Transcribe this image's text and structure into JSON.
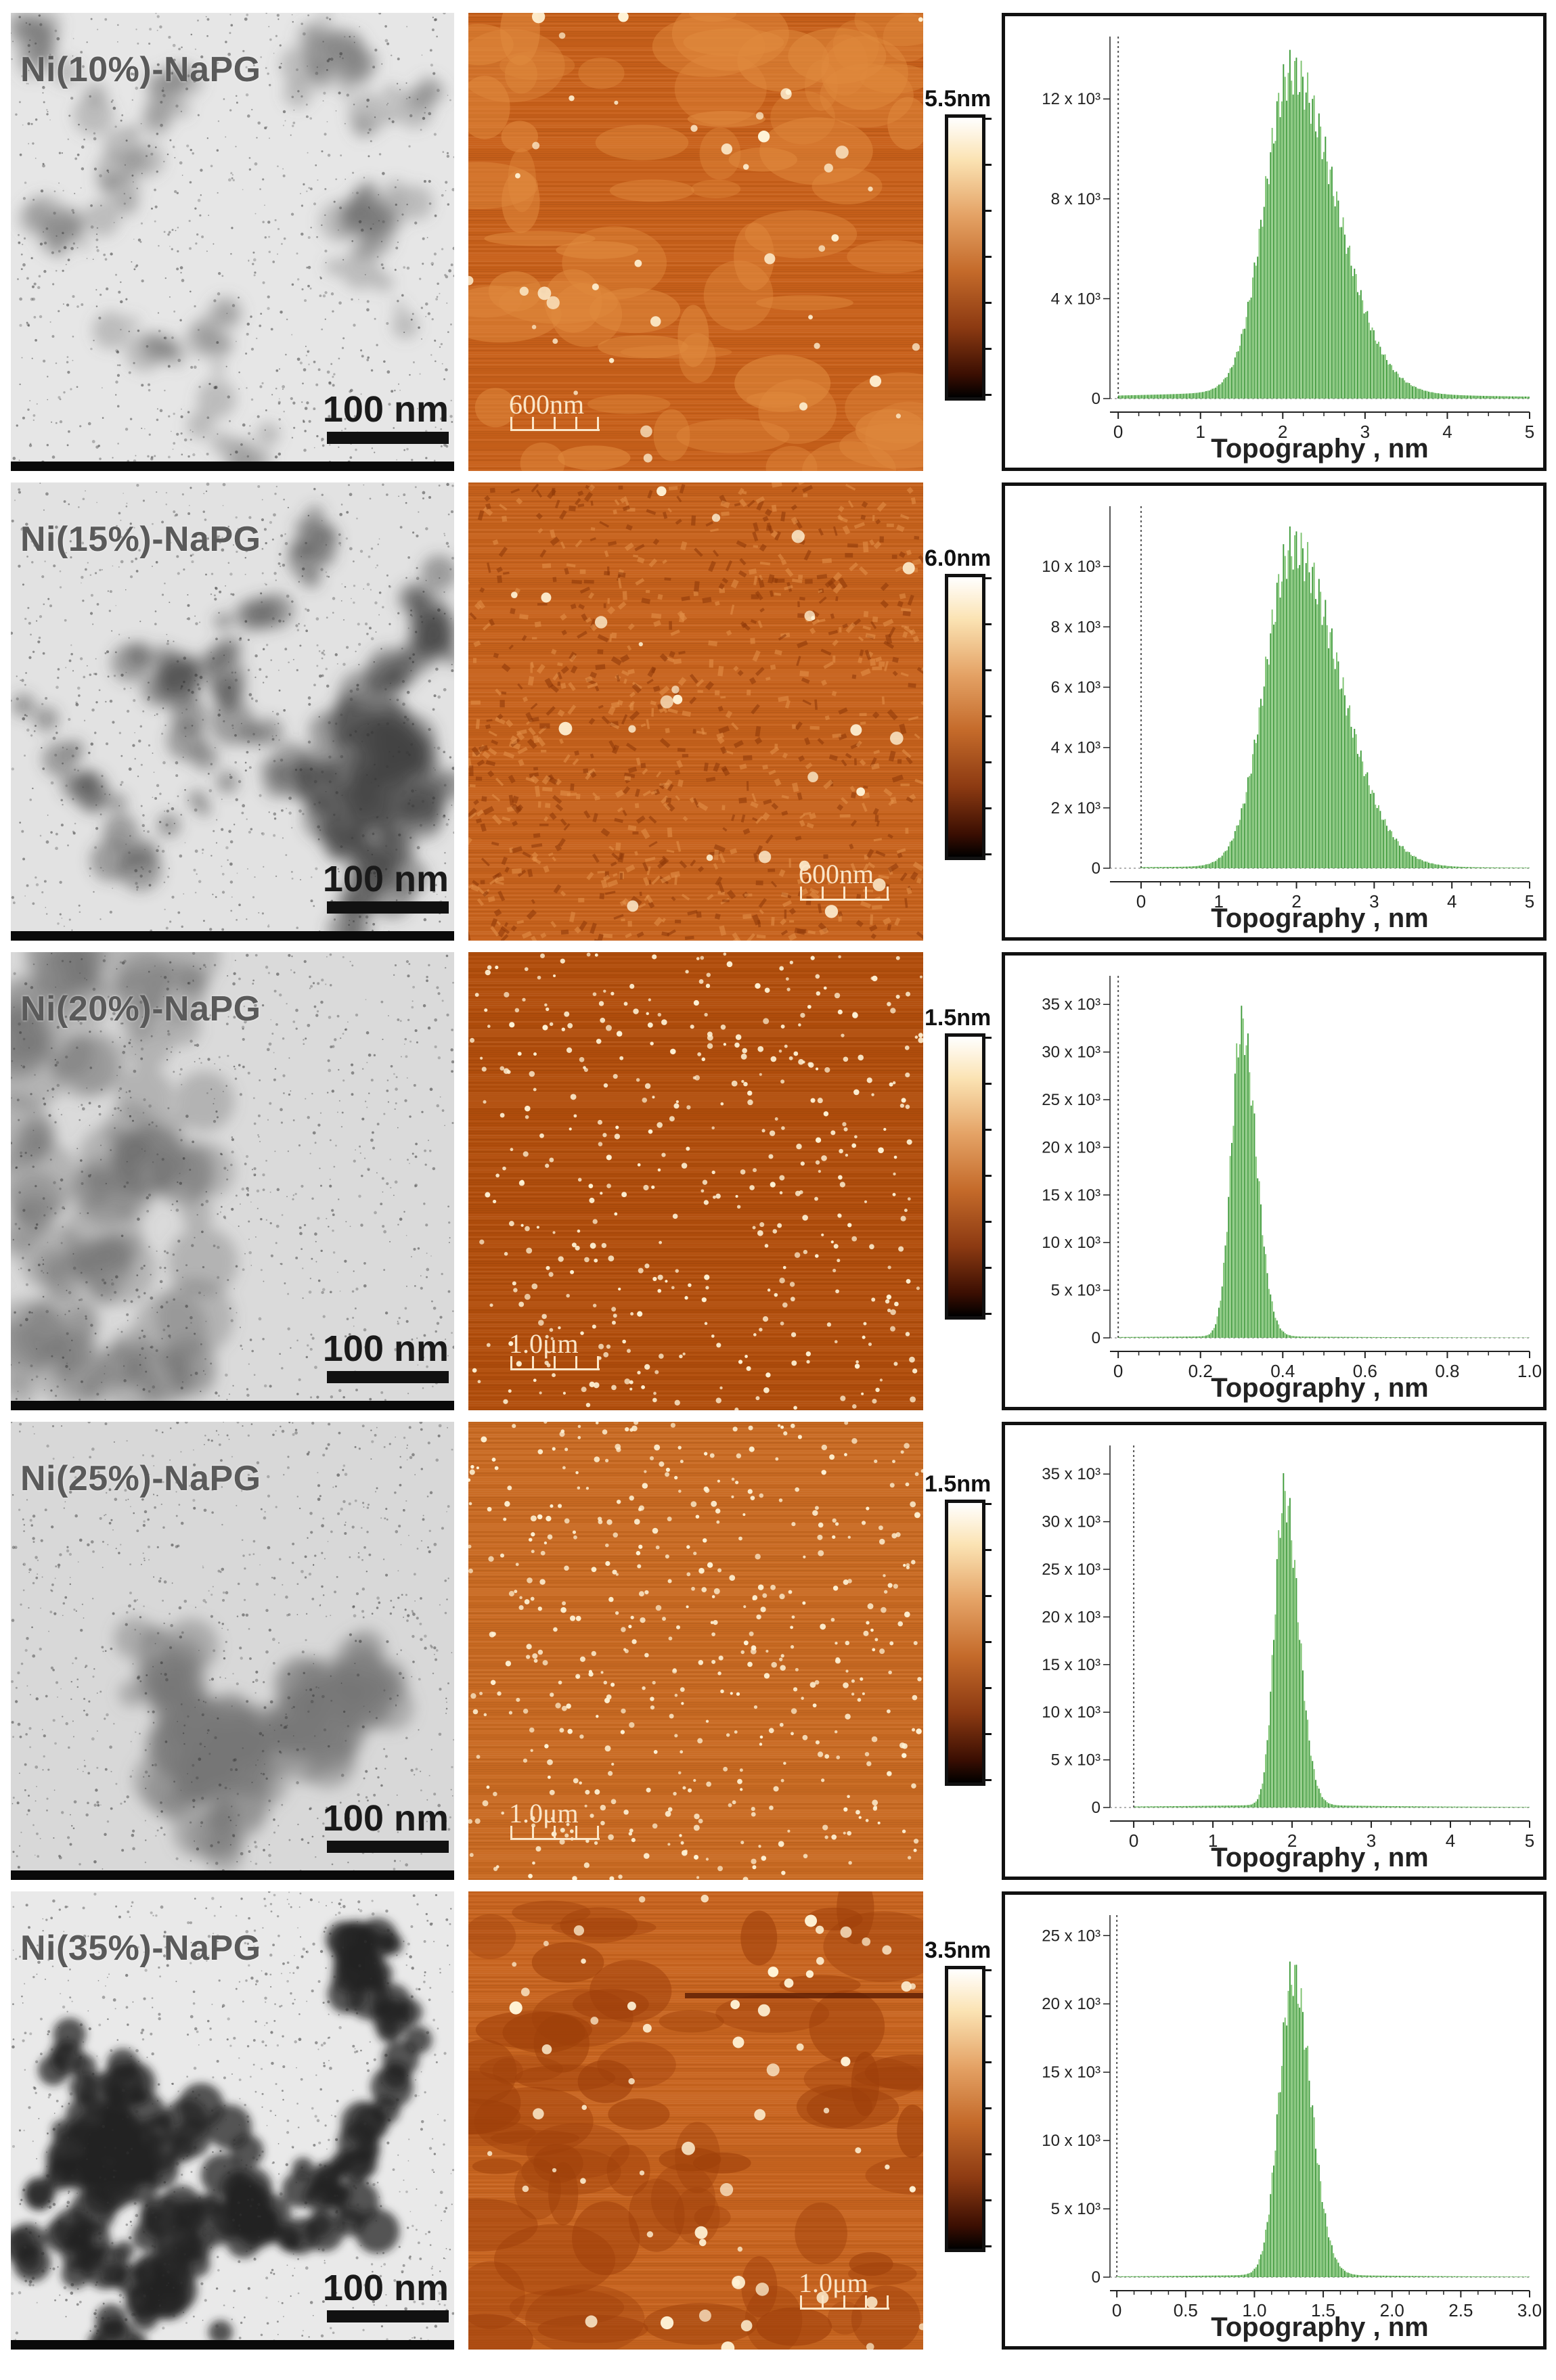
{
  "panels": [
    {
      "sample": "Ni(10%)-NaPG",
      "tem_scale": "100 nm",
      "afm_scale": "600nm",
      "afm_bar_pos": "bottom-left",
      "afm_max": "5.5nm",
      "tem_style": "light-network",
      "afm_style": "patchy",
      "chart_data": {
        "type": "bar",
        "xlabel": "Topography , nm",
        "xlim": [
          -0.1,
          5
        ],
        "xticks": [
          0,
          1,
          2,
          3,
          4,
          5
        ],
        "yticks": [
          0,
          4000,
          8000,
          12000
        ],
        "ytick_labels": [
          "0",
          "4 x 10³",
          "8 x 10³",
          "12 x 10³"
        ],
        "ylim": [
          0,
          14500
        ],
        "peak": 2.1,
        "sigma_left": 0.32,
        "sigma_right": 0.55,
        "peak_value": 13600,
        "baseline": 400
      }
    },
    {
      "sample": "Ni(15%)-NaPG",
      "tem_scale": "100 nm",
      "afm_scale": "600nm",
      "afm_bar_pos": "bottom-right",
      "afm_max": "6.0nm",
      "tem_style": "dense-network",
      "afm_style": "flakes",
      "chart_data": {
        "type": "bar",
        "xlabel": "Topography , nm",
        "xlim": [
          -0.4,
          5
        ],
        "xticks": [
          0,
          1,
          2,
          3,
          4,
          5
        ],
        "yticks": [
          0,
          2000,
          4000,
          6000,
          8000,
          10000
        ],
        "ytick_labels": [
          "0",
          "2 x 10³",
          "4 x 10³",
          "6 x 10³",
          "8 x 10³",
          "10 x 10³"
        ],
        "ylim": [
          0,
          12000
        ],
        "peak": 1.95,
        "sigma_left": 0.35,
        "sigma_right": 0.6,
        "peak_value": 11300,
        "baseline": 100
      }
    },
    {
      "sample": "Ni(20%)-NaPG",
      "tem_scale": "100 nm",
      "afm_scale": "1.0μm",
      "afm_bar_pos": "bottom-left",
      "afm_max": "1.5nm",
      "tem_style": "speckled",
      "afm_style": "dots",
      "chart_data": {
        "type": "bar",
        "xlabel": "Topography , nm",
        "xlim": [
          -0.02,
          1.0
        ],
        "xticks": [
          0,
          0.2,
          0.4,
          0.6,
          0.8,
          1.0
        ],
        "xtick_labels": [
          "0",
          "0.2",
          "0.4",
          "0.6",
          "0.8",
          "1.0"
        ],
        "yticks": [
          0,
          5000,
          10000,
          15000,
          20000,
          25000,
          30000,
          35000
        ],
        "ytick_labels": [
          "0",
          "5 x 10³",
          "10 x 10³",
          "15 x 10³",
          "20 x 10³",
          "25 x 10³",
          "30 x 10³",
          "35 x 10³"
        ],
        "ylim": [
          0,
          38000
        ],
        "peak": 0.3,
        "sigma_left": 0.025,
        "sigma_right": 0.035,
        "peak_value": 35000,
        "baseline": 200
      }
    },
    {
      "sample": "Ni(25%)-NaPG",
      "tem_scale": "100 nm",
      "afm_scale": "1.0μm",
      "afm_bar_pos": "bottom-left",
      "afm_max": "1.5nm",
      "tem_style": "mottled",
      "afm_style": "dots-light",
      "chart_data": {
        "type": "bar",
        "xlabel": "Topography , nm",
        "xlim": [
          -0.3,
          5
        ],
        "xticks": [
          0,
          1,
          2,
          3,
          4,
          5
        ],
        "yticks": [
          0,
          5000,
          10000,
          15000,
          20000,
          25000,
          30000,
          35000
        ],
        "ytick_labels": [
          "0",
          "5 x 10³",
          "10 x 10³",
          "15 x 10³",
          "20 x 10³",
          "25 x 10³",
          "30 x 10³",
          "35 x 10³"
        ],
        "ylim": [
          0,
          38000
        ],
        "peak": 1.9,
        "sigma_left": 0.12,
        "sigma_right": 0.18,
        "peak_value": 35000,
        "baseline": 300
      }
    },
    {
      "sample": "Ni(35%)-NaPG",
      "tem_scale": "100 nm",
      "afm_scale": "1.0μm",
      "afm_bar_pos": "bottom-right",
      "afm_max": "3.5nm",
      "tem_style": "dark-network",
      "afm_style": "terraces",
      "chart_data": {
        "type": "bar",
        "xlabel": "Topography , nm",
        "xlim": [
          -0.05,
          3.0
        ],
        "xticks": [
          0,
          0.5,
          1.0,
          1.5,
          2.0,
          2.5,
          3.0
        ],
        "xtick_labels": [
          "0",
          "0.5",
          "1.0",
          "1.5",
          "2.0",
          "2.5",
          "3.0"
        ],
        "yticks": [
          0,
          5000,
          10000,
          15000,
          20000,
          25000
        ],
        "ytick_labels": [
          "0",
          "5 x 10³",
          "10 x 10³",
          "15 x 10³",
          "20 x 10³",
          "25 x 10³"
        ],
        "ylim": [
          0,
          26500
        ],
        "peak": 1.28,
        "sigma_left": 0.1,
        "sigma_right": 0.13,
        "peak_value": 23500,
        "baseline": 200
      }
    }
  ],
  "colors": {
    "bar": "#3f9b3a",
    "bar_light": "#7cc26f",
    "afm_base": "#c15a14"
  }
}
